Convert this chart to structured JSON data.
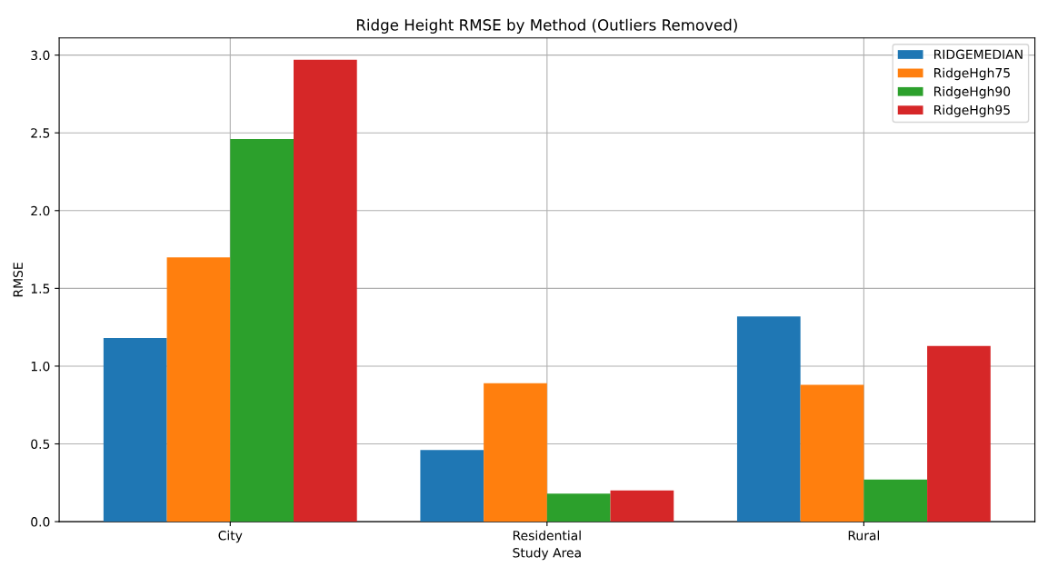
{
  "chart_data": {
    "type": "bar",
    "title": "Ridge Height RMSE by Method (Outliers Removed)",
    "xlabel": "Study Area",
    "ylabel": "RMSE",
    "categories": [
      "City",
      "Residential",
      "Rural"
    ],
    "series": [
      {
        "name": "RIDGEMEDIAN",
        "color": "#1f77b4",
        "values": [
          1.18,
          0.46,
          1.32
        ]
      },
      {
        "name": "RidgeHgh75",
        "color": "#ff7f0e",
        "values": [
          1.7,
          0.89,
          0.88
        ]
      },
      {
        "name": "RidgeHgh90",
        "color": "#2ca02c",
        "values": [
          2.46,
          0.18,
          0.27
        ]
      },
      {
        "name": "RidgeHgh95",
        "color": "#d62728",
        "values": [
          2.97,
          0.2,
          1.13
        ]
      }
    ],
    "ylim": [
      0,
      3.11
    ],
    "yticks": [
      {
        "value": 0,
        "label": "0.0"
      },
      0.5,
      {
        "value": 1,
        "label": "1.0"
      },
      1.5,
      {
        "value": 2,
        "label": "2.0"
      },
      2.5,
      {
        "value": 3,
        "label": "3.0"
      }
    ],
    "grid": true,
    "legend": "top right"
  }
}
